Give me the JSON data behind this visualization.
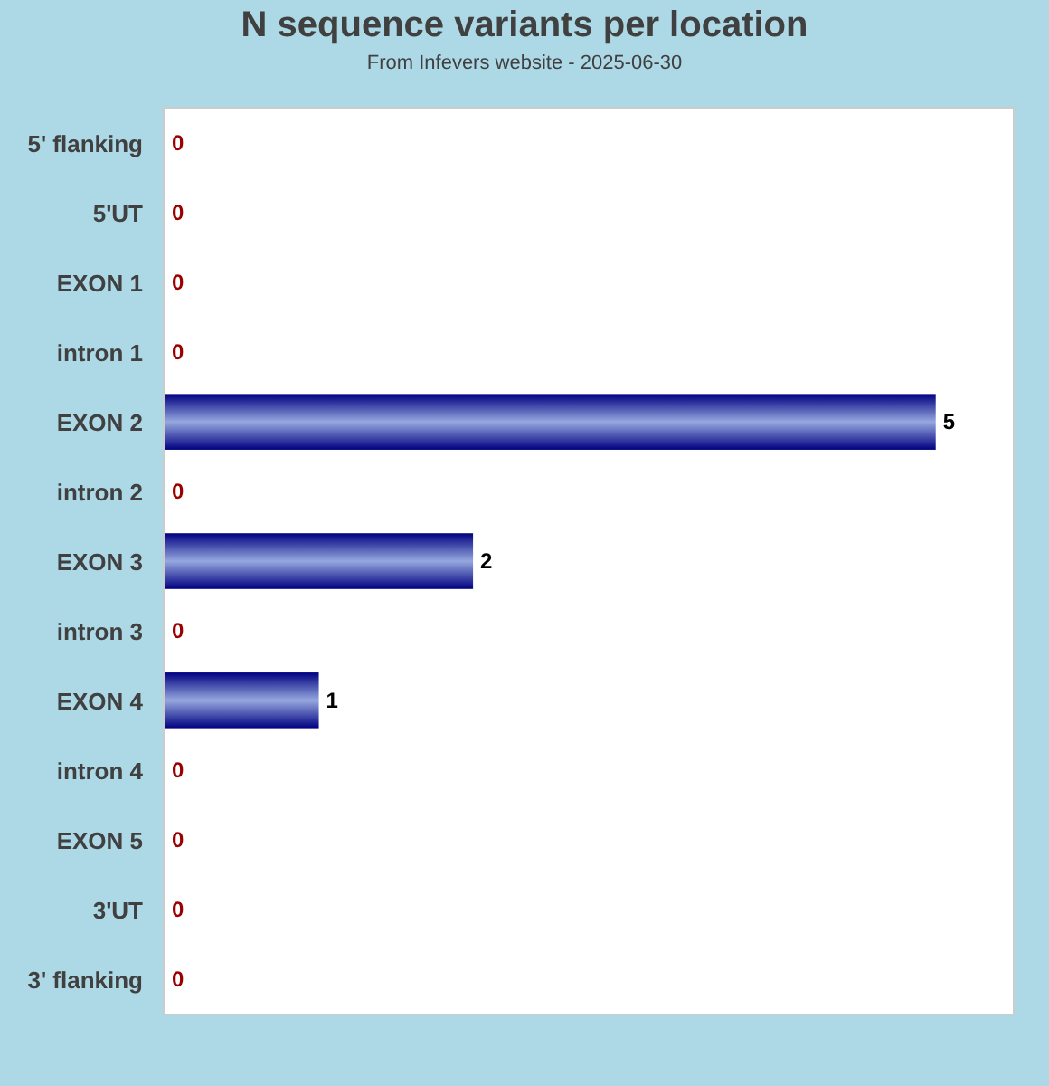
{
  "chart_data": {
    "type": "bar",
    "orientation": "horizontal",
    "title": "N sequence variants per location",
    "subtitle": "From Infevers website - 2025-06-30",
    "categories": [
      "5' flanking",
      "5'UT",
      "EXON 1",
      "intron 1",
      "EXON 2",
      "intron 2",
      "EXON 3",
      "intron 3",
      "EXON 4",
      "intron 4",
      "EXON 5",
      "3'UT",
      "3' flanking"
    ],
    "values": [
      0,
      0,
      0,
      0,
      5,
      0,
      2,
      0,
      1,
      0,
      0,
      0,
      0
    ],
    "color": "#000080",
    "xlim": [
      0,
      5.5
    ],
    "data_labels": true,
    "tick_labels": "y"
  }
}
